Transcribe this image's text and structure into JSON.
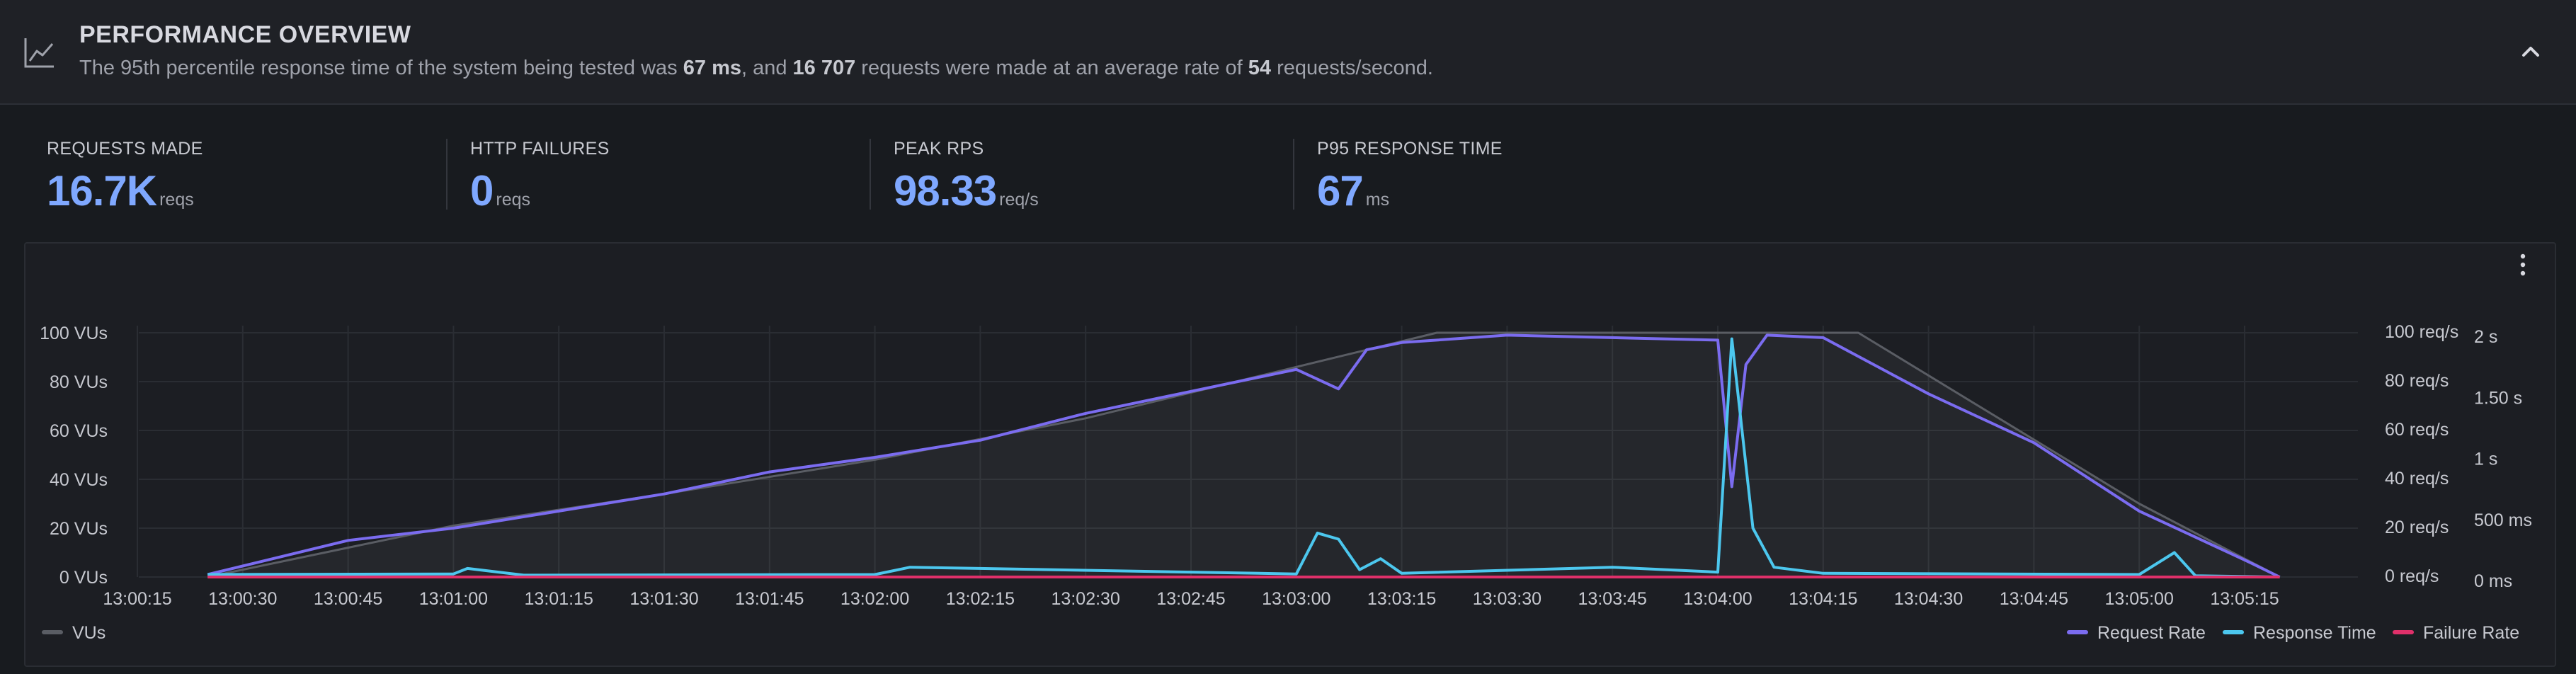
{
  "header": {
    "title": "PERFORMANCE OVERVIEW",
    "desc_pre": "The 95th percentile response time of the system being tested was ",
    "desc_p95": "67 ms",
    "desc_mid": ", and ",
    "desc_requests": "16 707",
    "desc_mid2": " requests were made at an average rate of ",
    "desc_rate": "54",
    "desc_post": " requests/second."
  },
  "stats": [
    {
      "label": "REQUESTS MADE",
      "value": "16.7K",
      "unit": "reqs"
    },
    {
      "label": "HTTP FAILURES",
      "value": "0",
      "unit": "reqs"
    },
    {
      "label": "PEAK RPS",
      "value": "98.33",
      "unit": "req/s"
    },
    {
      "label": "P95 RESPONSE TIME",
      "value": "67",
      "unit": "ms"
    }
  ],
  "colors": {
    "accent": "#7fa8ff",
    "request_rate": "#7b6cf0",
    "response_time": "#4cc7ee",
    "failure_rate": "#e0306a",
    "vus": "#5a5d64"
  },
  "icons": {
    "header": "chart-line-icon",
    "collapse": "chevron-up-icon",
    "menu": "kebab-menu-icon"
  },
  "chart_data": {
    "type": "line",
    "x_ticks": [
      "13:00:15",
      "13:00:30",
      "13:00:45",
      "13:01:00",
      "13:01:15",
      "13:01:30",
      "13:01:45",
      "13:02:00",
      "13:02:15",
      "13:02:30",
      "13:02:45",
      "13:03:00",
      "13:03:15",
      "13:03:30",
      "13:03:45",
      "13:04:00",
      "13:04:15",
      "13:04:30",
      "13:04:45",
      "13:05:00",
      "13:05:15"
    ],
    "y_left_ticks": [
      "0 VUs",
      "20 VUs",
      "40 VUs",
      "60 VUs",
      "80 VUs",
      "100 VUs"
    ],
    "y_rate_ticks": [
      "0 req/s",
      "20 req/s",
      "40 req/s",
      "60 req/s",
      "80 req/s",
      "100 req/s"
    ],
    "y_time_ticks": [
      "0 ms",
      "500 ms",
      "1 s",
      "1.50 s",
      "2 s"
    ],
    "y_left_range": [
      0,
      100
    ],
    "y_rate_range": [
      0,
      100
    ],
    "y_time_range_ms": [
      0,
      2000
    ],
    "x_start": "13:00:15",
    "x_end": "13:05:20",
    "grid": true,
    "legend_left": [
      "VUs"
    ],
    "legend_right": [
      "Request Rate",
      "Response Time",
      "Failure Rate"
    ],
    "series": [
      {
        "name": "VUs",
        "axis": "left",
        "x": [
          "13:00:25",
          "13:01:00",
          "13:01:30",
          "13:02:00",
          "13:02:30",
          "13:03:00",
          "13:03:20",
          "13:04:20",
          "13:05:00",
          "13:05:20"
        ],
        "values": [
          0,
          21,
          34,
          48,
          65,
          86,
          100,
          100,
          30,
          0
        ]
      },
      {
        "name": "Request Rate",
        "axis": "rate",
        "x": [
          "13:00:25",
          "13:00:45",
          "13:01:00",
          "13:01:15",
          "13:01:30",
          "13:01:45",
          "13:02:00",
          "13:02:15",
          "13:02:30",
          "13:02:45",
          "13:03:00",
          "13:03:06",
          "13:03:10",
          "13:03:15",
          "13:03:30",
          "13:03:45",
          "13:04:00",
          "13:04:02",
          "13:04:04",
          "13:04:07",
          "13:04:15",
          "13:04:30",
          "13:04:45",
          "13:05:00",
          "13:05:15",
          "13:05:20"
        ],
        "values": [
          1,
          15,
          20,
          27,
          34,
          43,
          49,
          56,
          67,
          76,
          85,
          77,
          93,
          96,
          99,
          98,
          97,
          37,
          87,
          99,
          98,
          75,
          55,
          27,
          7,
          0
        ]
      },
      {
        "name": "Response Time",
        "axis": "time",
        "x": [
          "13:00:25",
          "13:01:00",
          "13:01:02",
          "13:01:10",
          "13:02:00",
          "13:02:05",
          "13:03:00",
          "13:03:03",
          "13:03:06",
          "13:03:09",
          "13:03:12",
          "13:03:15",
          "13:03:45",
          "13:04:00",
          "13:04:02",
          "13:04:05",
          "13:04:08",
          "13:04:15",
          "13:05:00",
          "13:05:05",
          "13:05:08",
          "13:05:20"
        ],
        "values": [
          20,
          25,
          70,
          15,
          20,
          80,
          25,
          360,
          310,
          60,
          150,
          30,
          80,
          40,
          1950,
          400,
          80,
          30,
          20,
          200,
          10,
          0
        ]
      },
      {
        "name": "Failure Rate",
        "axis": "rate",
        "x": [
          "13:00:25",
          "13:05:20"
        ],
        "values": [
          0,
          0
        ]
      }
    ]
  }
}
